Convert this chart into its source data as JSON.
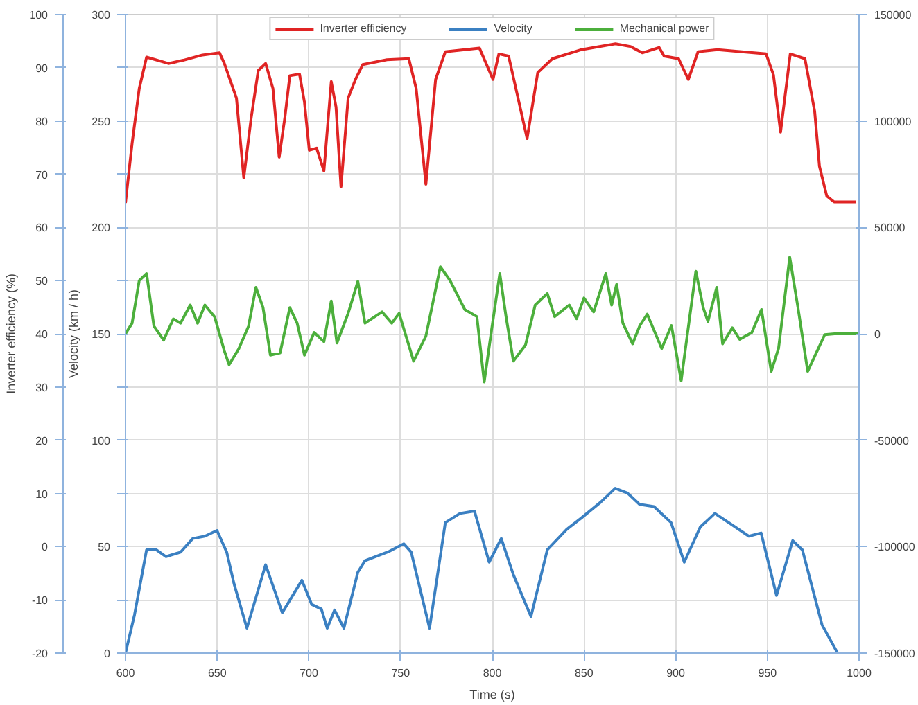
{
  "chart_data": {
    "type": "line",
    "xlabel": "Time (s)",
    "ylabel": "Velocity (km / h)",
    "y2label": "Inverter efficiency (%)",
    "xlim": [
      600,
      1000
    ],
    "xticks": [
      600,
      650,
      700,
      750,
      800,
      850,
      900,
      950,
      1000
    ],
    "ylim": [
      0,
      300
    ],
    "yticks": [
      0,
      {
        "value": 25,
        "label": null
      },
      50,
      {
        "value": 75,
        "label": null
      },
      100,
      {
        "value": 125,
        "label": null
      },
      150,
      {
        "value": 175,
        "label": null
      },
      200,
      {
        "value": 225,
        "label": null
      },
      250,
      {
        "value": 275,
        "label": null
      },
      300
    ],
    "y2lim": [
      -20,
      100
    ],
    "y2ticks": [
      -20,
      -10,
      0,
      10,
      20,
      30,
      40,
      50,
      60,
      70,
      80,
      90,
      100
    ],
    "y3lim": [
      -150000,
      150000
    ],
    "y3ticks": [
      -150000,
      -100000,
      -50000,
      0,
      50000,
      100000,
      150000
    ],
    "grid": true,
    "legend": "top",
    "line_style": "solid",
    "marker": "none",
    "series": [
      {
        "name": "Inverter efficiency",
        "color": "#e02424",
        "axis": "y2",
        "x": [
          600,
          603.6,
          607.5,
          611.5,
          623.4,
          631.4,
          642,
          651.3,
          653.9,
          660.5,
          664.5,
          668.5,
          672.4,
          676.4,
          680.4,
          683.8,
          687,
          689.6,
          694.9,
          697.6,
          700.2,
          704.2,
          708.2,
          712.2,
          714.8,
          717.5,
          721.4,
          725.4,
          729.4,
          742.6,
          754.5,
          758.5,
          763.8,
          769.1,
          774.4,
          793,
          800.4,
          803.6,
          808.9,
          819,
          824.8,
          832.8,
          848.7,
          867.2,
          875.2,
          881.8,
          891,
          893.7,
          901.6,
          906.9,
          912.2,
          922.8,
          949.3,
          953.3,
          957.2,
          962.5,
          970.5,
          975.8,
          978.4,
          982.4,
          986.4,
          998.3
        ],
        "values": [
          64.6,
          75.8,
          86.1,
          92.0,
          90.8,
          91.4,
          92.4,
          92.8,
          90.8,
          84.3,
          69.3,
          80.5,
          89.5,
          90.8,
          86.1,
          73.2,
          80.9,
          88.5,
          88.8,
          83.5,
          74.5,
          74.9,
          70.6,
          87.4,
          82.6,
          67.6,
          84.3,
          87.8,
          90.6,
          91.5,
          91.7,
          86.1,
          68.1,
          87.8,
          93.0,
          93.7,
          87.8,
          92.6,
          92.2,
          76.7,
          89.1,
          91.7,
          93.4,
          94.5,
          94.0,
          92.8,
          93.8,
          92.2,
          91.7,
          87.8,
          93.0,
          93.4,
          92.6,
          88.7,
          77.9,
          92.6,
          91.7,
          81.8,
          71.5,
          65.9,
          64.8,
          64.8
        ]
      },
      {
        "name": "Velocity",
        "color": "#3b80c2",
        "axis": "y",
        "x": [
          600,
          604.9,
          611.5,
          616.8,
          622.1,
          630,
          636.7,
          643.3,
          649.9,
          655.2,
          659.2,
          666.2,
          676.4,
          685.5,
          696.2,
          701.5,
          706.8,
          710,
          714,
          719.1,
          726.7,
          730.6,
          743.9,
          751.8,
          755.8,
          765.8,
          774.4,
          782.4,
          790.3,
          798.3,
          804.9,
          811.5,
          821.1,
          830,
          840.6,
          848.5,
          859.1,
          867,
          873.7,
          880.3,
          888.2,
          897.5,
          904.7,
          913.4,
          921.4,
          930.6,
          939.9,
          946.6,
          955,
          963.8,
          969.1,
          979.8,
          988.3,
          1000
        ],
        "values": [
          0,
          17.9,
          48.5,
          48.5,
          45.3,
          47.4,
          53.8,
          54.9,
          57.6,
          47.4,
          32.5,
          11.7,
          41.5,
          19,
          34.2,
          22.9,
          20.7,
          11.7,
          20.2,
          11.7,
          38,
          43.4,
          47.8,
          51.3,
          47.4,
          11.7,
          61.3,
          65.6,
          66.7,
          42.7,
          53.8,
          36.8,
          17.2,
          48.5,
          58.1,
          63.4,
          70.9,
          77.4,
          75.2,
          69.9,
          68.8,
          61.3,
          42.7,
          59.2,
          65.6,
          60.3,
          54.9,
          56.4,
          27.1,
          52.8,
          48.5,
          13.3,
          0,
          0
        ]
      },
      {
        "name": "Mechanical power",
        "color": "#4caf3c",
        "axis": "y3",
        "x": [
          600,
          603.6,
          607.5,
          611.5,
          615.5,
          620.8,
          626.1,
          630,
          635.3,
          639.3,
          643.3,
          648.6,
          653.9,
          656.5,
          661.8,
          667.1,
          671.1,
          675,
          679,
          684.3,
          689.6,
          693.6,
          697.6,
          702.9,
          708.2,
          712.2,
          715.3,
          721.4,
          726.7,
          730.6,
          739.9,
          745.2,
          749.2,
          757.1,
          763.8,
          771.7,
          777,
          785,
          791.6,
          795.6,
          799.6,
          804.1,
          807.5,
          811.5,
          818.1,
          823.4,
          830,
          834,
          842,
          846,
          850,
          855.3,
          861.9,
          865.1,
          867.8,
          871.2,
          876.5,
          880.5,
          884.5,
          892.4,
          897.7,
          903,
          911,
          915,
          917.6,
          922.4,
          925.6,
          930.9,
          934.9,
          941.5,
          946.8,
          952.1,
          956.1,
          962.2,
          966.7,
          972,
          981.3,
          986.6,
          1000
        ],
        "values": [
          0,
          5000,
          25000,
          28300,
          3600,
          -3000,
          7000,
          5000,
          13500,
          5000,
          13500,
          8000,
          -8000,
          -14500,
          -7000,
          3600,
          21800,
          12300,
          -10000,
          -9000,
          12300,
          5000,
          -10000,
          600,
          -3700,
          15400,
          -4300,
          9600,
          24600,
          5000,
          10300,
          5000,
          9600,
          -12800,
          -1100,
          31500,
          25000,
          11400,
          8100,
          -22600,
          1700,
          28300,
          8100,
          -12800,
          -5300,
          13500,
          18900,
          8100,
          13500,
          7100,
          16800,
          10300,
          28300,
          13500,
          23200,
          5000,
          -4700,
          3900,
          9200,
          -6900,
          3900,
          -22000,
          29400,
          12300,
          5800,
          21800,
          -4700,
          2800,
          -2600,
          600,
          11400,
          -17600,
          -6900,
          36000,
          12300,
          -17600,
          -400,
          0,
          0
        ]
      }
    ]
  }
}
